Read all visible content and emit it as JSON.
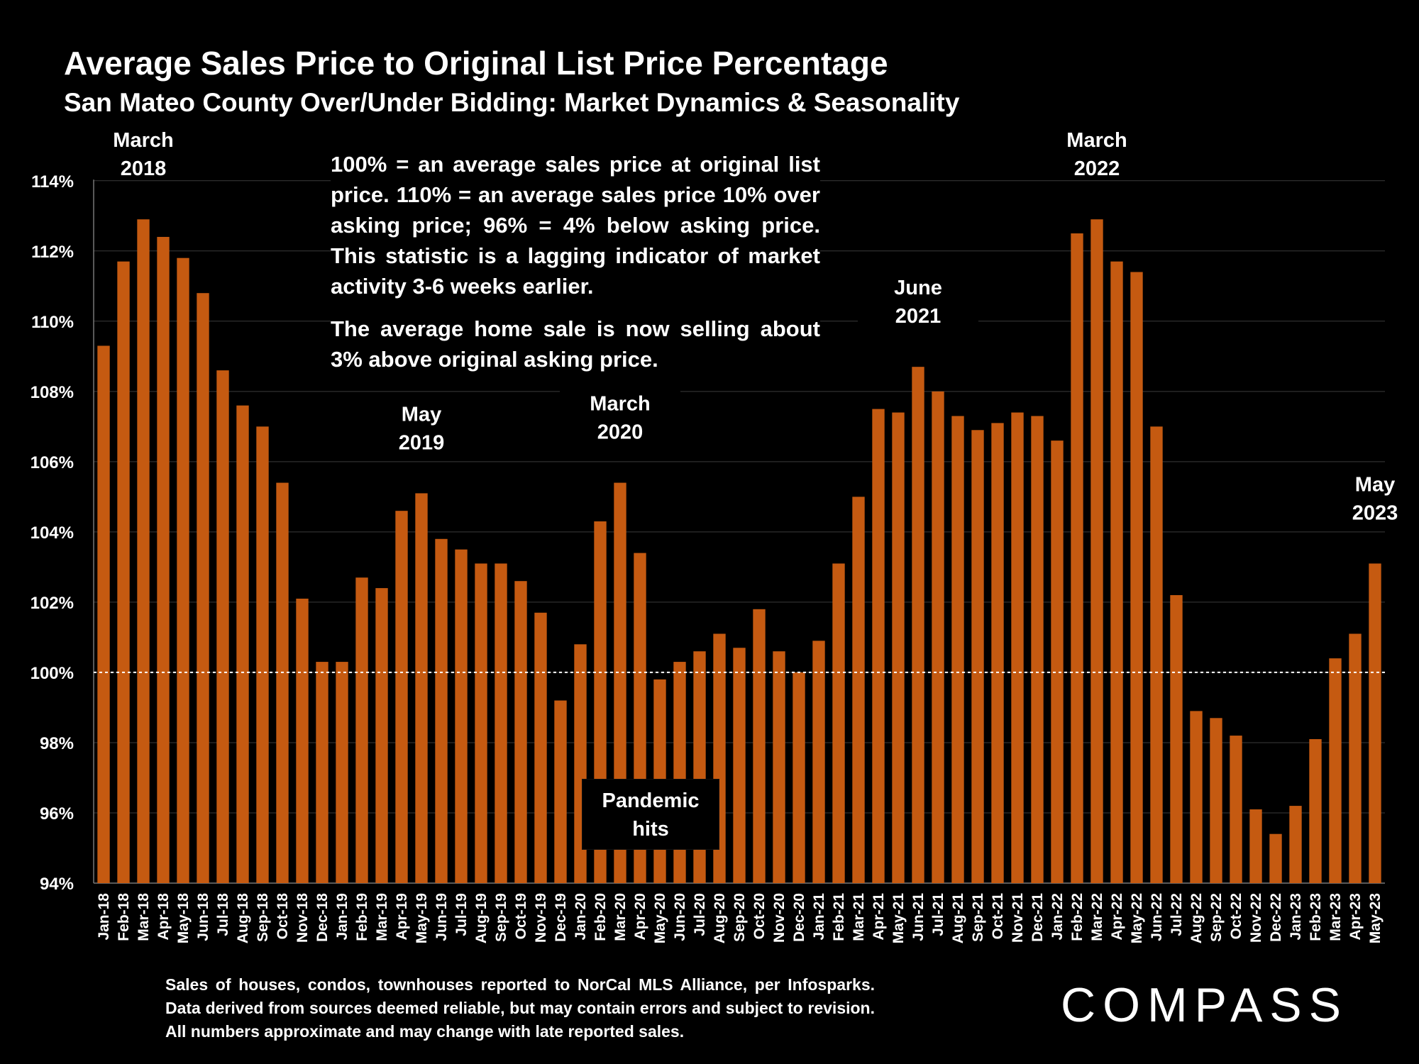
{
  "header": {
    "title": "Average Sales Price to Original List Price Percentage",
    "subtitle": "San Mateo County Over/Under Bidding: Market Dynamics & Seasonality"
  },
  "notes": {
    "note1": "100% = an average sales price at original list price. 110% = an average sales price 10% over asking price; 96% = 4% below asking price. This statistic is a lagging indicator of market activity 3-6 weeks earlier.",
    "note2": "The average home sale is now selling about 3% above original asking price."
  },
  "annotations": [
    {
      "line1": "March",
      "line2": "2018",
      "at": "Mar-18"
    },
    {
      "line1": "May",
      "line2": "2019",
      "at": "May-19"
    },
    {
      "line1": "March",
      "line2": "2020",
      "at": "Mar-20"
    },
    {
      "line1": "June",
      "line2": "2021",
      "at": "Jun-21"
    },
    {
      "line1": "March",
      "line2": "2022",
      "at": "Mar-22"
    },
    {
      "line1": "May",
      "line2": "2023",
      "at": "May-23"
    }
  ],
  "pandemic": {
    "line1": "Pandemic",
    "line2": "hits"
  },
  "footer": {
    "text": "Sales of houses, condos, townhouses reported to NorCal MLS Alliance, per Infosparks. Data derived from sources deemed reliable, but may contain errors and subject to revision. All numbers approximate and may change with late reported sales."
  },
  "logo": "COMPASS",
  "colors": {
    "bar": "#C55A11",
    "background": "#000000",
    "text": "#FFFFFF",
    "grid": "#3a3a3a"
  },
  "chart_data": {
    "type": "bar",
    "title": "Average Sales Price to Original List Price Percentage",
    "subtitle": "San Mateo County Over/Under Bidding: Market Dynamics & Seasonality",
    "xlabel": "",
    "ylabel": "",
    "ylim": [
      94,
      114.5
    ],
    "yticks": [
      94,
      96,
      98,
      100,
      102,
      104,
      106,
      108,
      110,
      112,
      114
    ],
    "ytick_suffix": "%",
    "reference_line": 100,
    "grid": true,
    "categories": [
      "Jan-18",
      "Feb-18",
      "Mar-18",
      "Apr-18",
      "May-18",
      "Jun-18",
      "Jul-18",
      "Aug-18",
      "Sep-18",
      "Oct-18",
      "Nov-18",
      "Dec-18",
      "Jan-19",
      "Feb-19",
      "Mar-19",
      "Apr-19",
      "May-19",
      "Jun-19",
      "Jul-19",
      "Aug-19",
      "Sep-19",
      "Oct-19",
      "Nov-19",
      "Dec-19",
      "Jan-20",
      "Feb-20",
      "Mar-20",
      "Apr-20",
      "May-20",
      "Jun-20",
      "Jul-20",
      "Aug-20",
      "Sep-20",
      "Oct-20",
      "Nov-20",
      "Dec-20",
      "Jan-21",
      "Feb-21",
      "Mar-21",
      "Apr-21",
      "May-21",
      "Jun-21",
      "Jul-21",
      "Aug-21",
      "Sep-21",
      "Oct-21",
      "Nov-21",
      "Dec-21",
      "Jan-22",
      "Feb-22",
      "Mar-22",
      "Apr-22",
      "May-22",
      "Jun-22",
      "Jul-22",
      "Aug-22",
      "Sep-22",
      "Oct-22",
      "Nov-22",
      "Dec-22",
      "Jan-23",
      "Feb-23",
      "Mar-23",
      "Apr-23",
      "May-23"
    ],
    "values": [
      109.3,
      111.7,
      112.9,
      112.4,
      111.8,
      110.8,
      108.6,
      107.6,
      107.0,
      105.4,
      102.1,
      100.3,
      100.3,
      102.7,
      102.4,
      104.6,
      105.1,
      103.8,
      103.5,
      103.1,
      103.1,
      102.6,
      101.7,
      99.2,
      100.8,
      104.3,
      105.4,
      103.4,
      99.8,
      100.3,
      100.6,
      101.1,
      100.7,
      101.8,
      100.6,
      100.0,
      100.9,
      103.1,
      105.0,
      107.5,
      107.4,
      108.7,
      108.0,
      107.3,
      106.9,
      107.1,
      107.4,
      107.3,
      106.6,
      112.5,
      112.9,
      111.7,
      111.4,
      107.0,
      102.2,
      98.9,
      98.7,
      98.2,
      96.1,
      95.4,
      96.2,
      98.1,
      100.4,
      101.1,
      103.1
    ]
  }
}
